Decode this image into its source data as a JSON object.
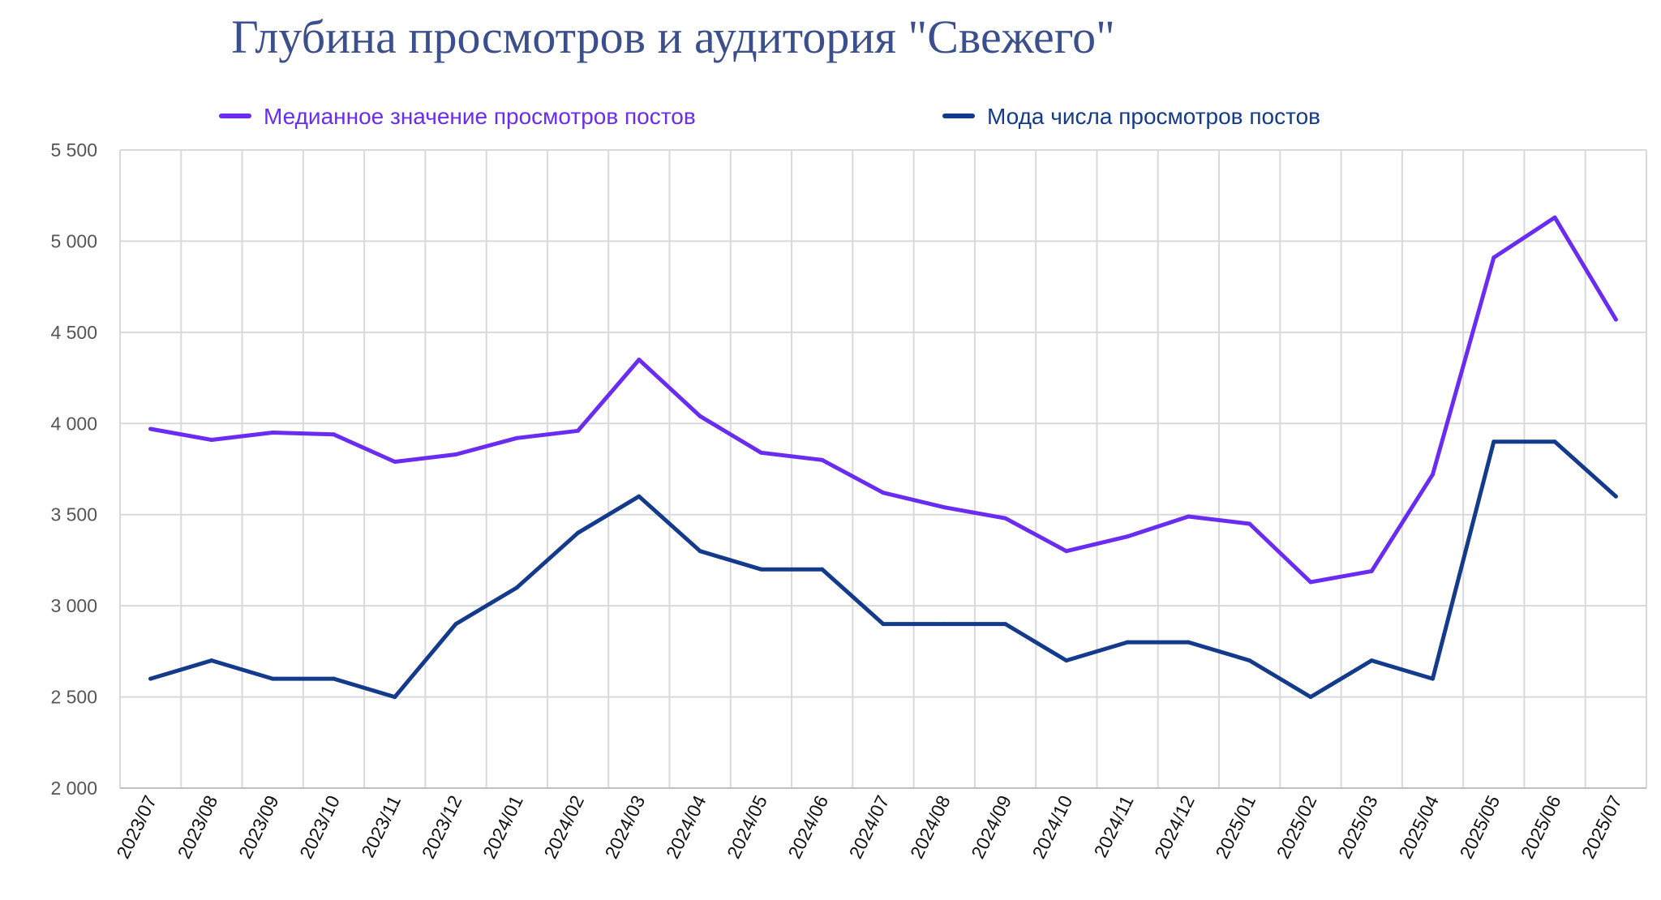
{
  "chart_data": {
    "type": "line",
    "title": "Глубина просмотров и аудитория \"Свежего\"",
    "xlabel": "",
    "ylabel": "",
    "ylim": [
      2000,
      5500
    ],
    "yticks": [
      "2 000",
      "2 500",
      "3 000",
      "3 500",
      "4 000",
      "4 500",
      "5 000",
      "5 500"
    ],
    "ytick_values": [
      2000,
      2500,
      3000,
      3500,
      4000,
      4500,
      5000,
      5500
    ],
    "grid": true,
    "legend_position": "top",
    "categories": [
      "2023/07",
      "2023/08",
      "2023/09",
      "2023/10",
      "2023/11",
      "2023/12",
      "2024/01",
      "2024/02",
      "2024/03",
      "2024/04",
      "2024/05",
      "2024/06",
      "2024/07",
      "2024/08",
      "2024/09",
      "2024/10",
      "2024/11",
      "2024/12",
      "2025/01",
      "2025/02",
      "2025/03",
      "2025/04",
      "2025/05",
      "2025/06",
      "2025/07"
    ],
    "series": [
      {
        "name": "Медианное значение просмотров постов",
        "color": "#6a2cf0",
        "values": [
          3970,
          3910,
          3950,
          3940,
          3790,
          3830,
          3920,
          3960,
          4350,
          4040,
          3840,
          3800,
          3620,
          3540,
          3480,
          3300,
          3380,
          3490,
          3450,
          3130,
          3190,
          3720,
          4910,
          5130,
          4570
        ]
      },
      {
        "name": "Мода числа просмотров постов",
        "color": "#143a8c",
        "values": [
          2600,
          2700,
          2600,
          2600,
          2500,
          2900,
          3100,
          3400,
          3600,
          3300,
          3200,
          3200,
          2900,
          2900,
          2900,
          2700,
          2800,
          2800,
          2700,
          2500,
          2700,
          2600,
          3900,
          3900,
          3600
        ]
      }
    ]
  }
}
